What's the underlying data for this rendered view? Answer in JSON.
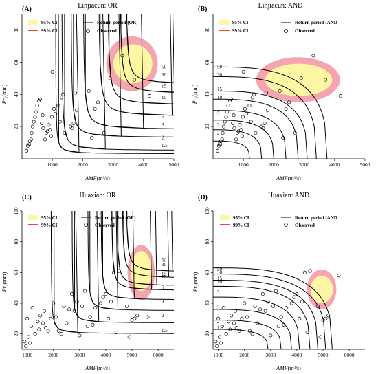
{
  "figure": {
    "panels": [
      {
        "id": "A",
        "label": "(A)",
        "title": "Linjiacun: OR",
        "xlabel_main": "AMF",
        "xlabel_unit": "(m³/s)",
        "ylabel_main": "Pr₂",
        "ylabel_unit": "(mm)",
        "legend": {
          "ci95": "95% CI",
          "ci99": "99% CI",
          "rp": "Return period (OR)",
          "obs": "Observed"
        }
      },
      {
        "id": "B",
        "label": "(B)",
        "title": "Linjiacun: AND",
        "xlabel_main": "AMF",
        "xlabel_unit": "(m³/s)",
        "ylabel_main": "Pr₂",
        "ylabel_unit": "(mm)",
        "legend": {
          "ci95": "95% CI",
          "ci99": "99% CI",
          "rp": "Return period (AND",
          "obs": "Observed"
        }
      },
      {
        "id": "C",
        "label": "(C)",
        "title": "Huaxian: OR",
        "xlabel_main": "AMF",
        "xlabel_unit": "(m³/s)",
        "ylabel_main": "Pr₃",
        "ylabel_unit": "(mm)",
        "legend": {
          "ci95": "95% CI",
          "ci99": "99% CI",
          "rp": "Return period (OR)",
          "obs": "Observed"
        }
      },
      {
        "id": "D",
        "label": "(D)",
        "title": "Huaxian: AND",
        "xlabel_main": "AMF",
        "xlabel_unit": "(m³/s)",
        "ylabel_main": "Pr₃",
        "ylabel_unit": "(mm)",
        "legend": {
          "ci95": "95% CI",
          "ci99": "99% CI",
          "rp": "Return period (AND",
          "obs": "Observed"
        }
      }
    ]
  },
  "colors": {
    "ci95": "#fdf7a5",
    "ci99": "#f5a5b0",
    "curve": "#000000"
  },
  "chart_data": [
    {
      "panel": "A",
      "type": "scatter",
      "xlim": [
        0,
        5000
      ],
      "ylim": [
        0,
        90
      ],
      "xticks": [
        1000,
        2000,
        3000,
        4000,
        5000
      ],
      "yticks": [
        20,
        40,
        60,
        80
      ],
      "return_period_curves": [
        {
          "label": "1.5",
          "xv": 1100,
          "yv": 3,
          "K": 7,
          "label_y": 8
        },
        {
          "label": "2",
          "xv": 1300,
          "yv": 5,
          "K": 13,
          "label_y": 13
        },
        {
          "label": "3",
          "xv": 1600,
          "yv": 13,
          "K": 15,
          "label_y": 21
        },
        {
          "label": "5",
          "xv": 2000,
          "yv": 18,
          "K": 18,
          "label_y": 26
        },
        {
          "label": "10",
          "xv": 2500,
          "yv": 26,
          "K": 22,
          "label_y": 38
        },
        {
          "label": "15",
          "xv": 2800,
          "yv": 33,
          "K": 20,
          "label_y": 45
        },
        {
          "label": "30",
          "xv": 3200,
          "yv": 40,
          "K": 20,
          "label_y": 52
        },
        {
          "label": "50",
          "xv": 3400,
          "yv": 46,
          "K": 18,
          "label_y": 57
        }
      ],
      "ci99": {
        "cx": 3620,
        "cy": 59,
        "rx": 850,
        "ry": 17
      },
      "ci95": {
        "cx": 3650,
        "cy": 59,
        "rx": 640,
        "ry": 12
      },
      "observed": [
        [
          150,
          5
        ],
        [
          190,
          8
        ],
        [
          240,
          9
        ],
        [
          260,
          11
        ],
        [
          300,
          12
        ],
        [
          320,
          16
        ],
        [
          350,
          20
        ],
        [
          390,
          23
        ],
        [
          430,
          26
        ],
        [
          460,
          29
        ],
        [
          500,
          33
        ],
        [
          560,
          36
        ],
        [
          600,
          37
        ],
        [
          650,
          22
        ],
        [
          680,
          27
        ],
        [
          700,
          19
        ],
        [
          760,
          12
        ],
        [
          800,
          16
        ],
        [
          840,
          17
        ],
        [
          880,
          21
        ],
        [
          920,
          18
        ],
        [
          960,
          14
        ],
        [
          980,
          26
        ],
        [
          1000,
          54
        ],
        [
          1050,
          31
        ],
        [
          1100,
          28
        ],
        [
          1200,
          33
        ],
        [
          1250,
          23
        ],
        [
          1300,
          38
        ],
        [
          1350,
          40
        ],
        [
          1400,
          16
        ],
        [
          1600,
          20
        ],
        [
          1650,
          19
        ],
        [
          1700,
          22
        ],
        [
          1750,
          41
        ],
        [
          1800,
          30
        ],
        [
          2200,
          42
        ],
        [
          2300,
          13
        ],
        [
          2400,
          31
        ],
        [
          2500,
          35
        ],
        [
          2700,
          16
        ],
        [
          2900,
          50
        ],
        [
          3300,
          64
        ],
        [
          3700,
          49
        ],
        [
          4200,
          39
        ]
      ]
    },
    {
      "panel": "B",
      "type": "scatter",
      "xlim": [
        0,
        5000
      ],
      "ylim": [
        0,
        90
      ],
      "xticks": [
        1000,
        2000,
        3000,
        4000,
        5000
      ],
      "yticks": [
        20,
        40,
        60,
        80
      ],
      "return_period_curves": [
        {
          "label": "1",
          "xv": 1200,
          "yv": 11,
          "label_y": 9
        },
        {
          "label": "2",
          "xv": 1600,
          "yv": 18,
          "label_y": 16
        },
        {
          "label": "3",
          "xv": 2000,
          "yv": 24,
          "label_y": 21
        },
        {
          "label": "5",
          "xv": 2400,
          "yv": 30,
          "label_y": 28
        },
        {
          "label": "10",
          "xv": 2800,
          "yv": 37,
          "label_y": 38
        },
        {
          "label": "15",
          "xv": 3100,
          "yv": 42,
          "label_y": 43
        },
        {
          "label": "30",
          "xv": 3400,
          "yv": 51,
          "label_y": 52
        },
        {
          "label": "50",
          "xv": 3750,
          "yv": 57,
          "label_y": 57
        }
      ],
      "ci99": {
        "cx": 2800,
        "cy": 49,
        "rx": 1380,
        "ry": 14
      },
      "ci95": {
        "cx": 2820,
        "cy": 49,
        "rx": 1100,
        "ry": 10
      },
      "observed": [
        [
          150,
          5
        ],
        [
          190,
          8
        ],
        [
          240,
          9
        ],
        [
          260,
          11
        ],
        [
          300,
          12
        ],
        [
          320,
          16
        ],
        [
          350,
          20
        ],
        [
          390,
          23
        ],
        [
          430,
          26
        ],
        [
          460,
          29
        ],
        [
          500,
          33
        ],
        [
          560,
          36
        ],
        [
          600,
          37
        ],
        [
          650,
          22
        ],
        [
          680,
          27
        ],
        [
          700,
          19
        ],
        [
          760,
          12
        ],
        [
          800,
          16
        ],
        [
          840,
          17
        ],
        [
          880,
          21
        ],
        [
          920,
          18
        ],
        [
          960,
          14
        ],
        [
          980,
          26
        ],
        [
          1000,
          54
        ],
        [
          1050,
          31
        ],
        [
          1100,
          28
        ],
        [
          1200,
          33
        ],
        [
          1250,
          23
        ],
        [
          1300,
          38
        ],
        [
          1350,
          40
        ],
        [
          1400,
          16
        ],
        [
          1600,
          20
        ],
        [
          1650,
          19
        ],
        [
          1700,
          22
        ],
        [
          1750,
          41
        ],
        [
          1800,
          30
        ],
        [
          2200,
          42
        ],
        [
          2300,
          13
        ],
        [
          2400,
          31
        ],
        [
          2500,
          35
        ],
        [
          2700,
          16
        ],
        [
          2900,
          50
        ],
        [
          3300,
          64
        ],
        [
          3700,
          49
        ],
        [
          4200,
          39
        ]
      ]
    },
    {
      "panel": "C",
      "type": "scatter",
      "xlim": [
        800,
        6600
      ],
      "ylim": [
        10,
        100
      ],
      "xticks": [
        1000,
        2000,
        3000,
        4000,
        5000,
        6000
      ],
      "yticks": [
        20,
        40,
        60,
        80,
        100
      ],
      "return_period_curves": [
        {
          "label": "1.5",
          "xv": 1900,
          "yv": 20,
          "K": 8,
          "label_y": 22
        },
        {
          "label": "2",
          "xv": 2700,
          "yv": 27,
          "K": 8,
          "label_y": 32
        },
        {
          "label": "3",
          "xv": 3300,
          "yv": 35,
          "K": 9,
          "label_y": 41
        },
        {
          "label": "5",
          "xv": 3800,
          "yv": 42,
          "K": 10,
          "label_y": 50
        },
        {
          "label": "10",
          "xv": 4200,
          "yv": 48,
          "K": 12,
          "label_y": 57
        },
        {
          "label": "15",
          "xv": 4400,
          "yv": 51,
          "K": 12,
          "label_y": 59
        },
        {
          "label": "30",
          "xv": 4600,
          "yv": 56,
          "K": 14,
          "label_y": 65
        },
        {
          "label": "50",
          "xv": 4750,
          "yv": 60,
          "K": 14,
          "label_y": 68
        }
      ],
      "ci99": {
        "cx": 5350,
        "cy": 60,
        "rx": 520,
        "ry": 18
      },
      "ci95": {
        "cx": 5350,
        "cy": 61,
        "rx": 400,
        "ry": 13
      },
      "observed": [
        [
          900,
          15
        ],
        [
          950,
          12
        ],
        [
          1000,
          30
        ],
        [
          1050,
          18
        ],
        [
          1100,
          14
        ],
        [
          1150,
          25
        ],
        [
          1200,
          37
        ],
        [
          1300,
          20
        ],
        [
          1400,
          28
        ],
        [
          1450,
          23
        ],
        [
          1500,
          32
        ],
        [
          1600,
          27
        ],
        [
          1650,
          35
        ],
        [
          1700,
          24
        ],
        [
          1800,
          22
        ],
        [
          1900,
          30
        ],
        [
          2000,
          40
        ],
        [
          2100,
          31
        ],
        [
          2200,
          22
        ],
        [
          2300,
          20
        ],
        [
          2400,
          38
        ],
        [
          2500,
          27
        ],
        [
          2600,
          36
        ],
        [
          2700,
          46
        ],
        [
          2800,
          35
        ],
        [
          2900,
          41
        ],
        [
          3000,
          19
        ],
        [
          3100,
          38
        ],
        [
          3200,
          48
        ],
        [
          3300,
          25
        ],
        [
          3400,
          31
        ],
        [
          3500,
          26
        ],
        [
          3600,
          37
        ],
        [
          3800,
          40
        ],
        [
          3900,
          44
        ],
        [
          4000,
          46
        ],
        [
          4100,
          30
        ],
        [
          4200,
          41
        ],
        [
          4300,
          60
        ],
        [
          4400,
          21
        ],
        [
          4500,
          61
        ],
        [
          4800,
          38
        ],
        [
          4900,
          18
        ],
        [
          5000,
          29
        ],
        [
          5100,
          30
        ],
        [
          5200,
          32
        ],
        [
          5600,
          31
        ]
      ]
    },
    {
      "panel": "D",
      "type": "scatter",
      "xlim": [
        800,
        6600
      ],
      "ylim": [
        10,
        100
      ],
      "xticks": [
        1000,
        2000,
        3000,
        4000,
        5000,
        6000
      ],
      "yticks": [
        20,
        40,
        60,
        80,
        100
      ],
      "return_period_curves": [
        {
          "label": "1.5",
          "xv": 2900,
          "yv": 23,
          "label_y": 24
        },
        {
          "label": "2",
          "xv": 3400,
          "yv": 29,
          "label_y": 28
        },
        {
          "label": "3",
          "xv": 3800,
          "yv": 36,
          "label_y": 37
        },
        {
          "label": "5",
          "xv": 4100,
          "yv": 44,
          "label_y": 47
        },
        {
          "label": "10",
          "xv": 4500,
          "yv": 51,
          "label_y": 54
        },
        {
          "label": "15",
          "xv": 4800,
          "yv": 55,
          "label_y": 56
        },
        {
          "label": "30",
          "xv": 5100,
          "yv": 59,
          "label_y": 60
        },
        {
          "label": "50",
          "xv": 5350,
          "yv": 63,
          "label_y": 62
        }
      ],
      "ci99": {
        "cx": 4950,
        "cy": 49,
        "rx": 560,
        "ry": 13
      },
      "ci95": {
        "cx": 4950,
        "cy": 49,
        "rx": 430,
        "ry": 9
      },
      "observed": [
        [
          900,
          15
        ],
        [
          950,
          12
        ],
        [
          1000,
          30
        ],
        [
          1050,
          18
        ],
        [
          1100,
          14
        ],
        [
          1150,
          25
        ],
        [
          1200,
          37
        ],
        [
          1300,
          20
        ],
        [
          1400,
          28
        ],
        [
          1450,
          23
        ],
        [
          1500,
          32
        ],
        [
          1600,
          27
        ],
        [
          1650,
          35
        ],
        [
          1700,
          24
        ],
        [
          1800,
          22
        ],
        [
          1900,
          30
        ],
        [
          2000,
          40
        ],
        [
          2100,
          31
        ],
        [
          2200,
          22
        ],
        [
          2300,
          20
        ],
        [
          2400,
          38
        ],
        [
          2500,
          27
        ],
        [
          2600,
          36
        ],
        [
          2700,
          46
        ],
        [
          2800,
          35
        ],
        [
          2900,
          41
        ],
        [
          3000,
          19
        ],
        [
          3100,
          38
        ],
        [
          3200,
          48
        ],
        [
          3300,
          25
        ],
        [
          3400,
          31
        ],
        [
          3500,
          26
        ],
        [
          3600,
          37
        ],
        [
          3800,
          40
        ],
        [
          3900,
          44
        ],
        [
          4000,
          46
        ],
        [
          4100,
          30
        ],
        [
          4200,
          41
        ],
        [
          4300,
          60
        ],
        [
          4400,
          21
        ],
        [
          4500,
          61
        ],
        [
          4800,
          38
        ],
        [
          4900,
          18
        ],
        [
          5000,
          29
        ],
        [
          5100,
          30
        ],
        [
          5200,
          32
        ],
        [
          5600,
          58
        ]
      ]
    }
  ]
}
